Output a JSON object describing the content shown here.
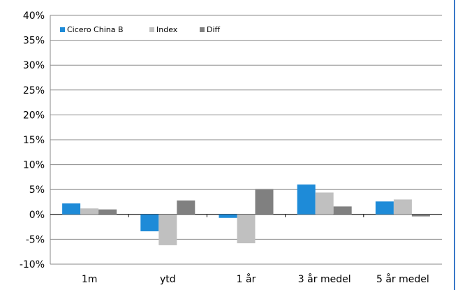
{
  "chart_data": {
    "type": "bar",
    "categories": [
      "1m",
      "ytd",
      "1 år",
      "3 år medel",
      "5 år medel"
    ],
    "series": [
      {
        "name": "Cicero China B",
        "color": "#1e8bd8",
        "values": [
          2.2,
          -3.4,
          -0.7,
          6.0,
          2.6
        ]
      },
      {
        "name": "Index",
        "color": "#c0c0c0",
        "values": [
          1.2,
          -6.2,
          -5.8,
          4.4,
          3.0
        ]
      },
      {
        "name": "Diff",
        "color": "#808080",
        "values": [
          1.0,
          2.8,
          5.1,
          1.6,
          -0.4
        ]
      }
    ],
    "yticks": [
      "40%",
      "35%",
      "30%",
      "25%",
      "20%",
      "15%",
      "10%",
      "5%",
      "0%",
      "-5%",
      "-10%"
    ],
    "ylim": [
      -10,
      40
    ],
    "grid": true,
    "legend_position": "top-left",
    "title": "",
    "xlabel": "",
    "ylabel": ""
  }
}
